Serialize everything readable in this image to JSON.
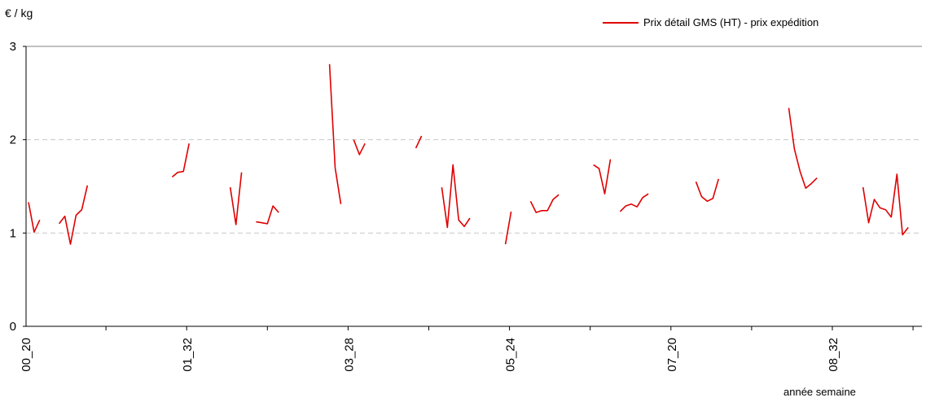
{
  "colors": {
    "series": "#e00000",
    "grid": "#c8c8c8",
    "axis": "#000000"
  },
  "chart_data": {
    "type": "line",
    "ylabel": "€ / kg",
    "xlabel": "année  semaine",
    "ylim": [
      0,
      3
    ],
    "yticks": [
      0,
      1,
      2,
      3
    ],
    "grid": "horizontal-dashed",
    "legend_position": "top-right",
    "x_tick_labels": [
      "00_20",
      "01_32",
      "03_28",
      "05_24",
      "07_20",
      "08_32"
    ],
    "series": [
      {
        "name": "Prix détail GMS (HT) - prix expédition",
        "segments": [
          [
            [
              0.3,
              1.33
            ],
            [
              1.0,
              1.01
            ],
            [
              1.7,
              1.14
            ]
          ],
          [
            [
              4.1,
              1.1
            ],
            [
              4.8,
              1.18
            ],
            [
              5.5,
              0.88
            ],
            [
              6.2,
              1.19
            ],
            [
              6.9,
              1.25
            ],
            [
              7.6,
              1.51
            ]
          ],
          [
            [
              18.1,
              1.6
            ],
            [
              18.8,
              1.65
            ],
            [
              19.5,
              1.66
            ],
            [
              20.2,
              1.96
            ]
          ],
          [
            [
              25.3,
              1.49
            ],
            [
              26.0,
              1.09
            ],
            [
              26.7,
              1.65
            ]
          ],
          [
            [
              28.5,
              1.12
            ],
            [
              29.2,
              1.11
            ],
            [
              29.9,
              1.1
            ],
            [
              30.6,
              1.29
            ],
            [
              31.3,
              1.22
            ]
          ],
          [
            [
              37.6,
              2.81
            ],
            [
              38.3,
              1.7
            ],
            [
              39.0,
              1.31
            ]
          ],
          [
            [
              40.6,
              2.0
            ],
            [
              41.3,
              1.84
            ],
            [
              42.0,
              1.96
            ]
          ],
          [
            [
              48.3,
              1.91
            ],
            [
              49.0,
              2.04
            ]
          ],
          [
            [
              51.5,
              1.49
            ],
            [
              52.2,
              1.06
            ],
            [
              52.9,
              1.73
            ],
            [
              53.6,
              1.14
            ],
            [
              54.3,
              1.07
            ],
            [
              55.0,
              1.16
            ]
          ],
          [
            [
              59.4,
              0.88
            ],
            [
              60.1,
              1.23
            ]
          ],
          [
            [
              62.5,
              1.34
            ],
            [
              63.2,
              1.22
            ],
            [
              63.9,
              1.24
            ],
            [
              64.6,
              1.24
            ],
            [
              65.3,
              1.36
            ],
            [
              66.0,
              1.41
            ]
          ],
          [
            [
              70.3,
              1.73
            ],
            [
              71.0,
              1.69
            ],
            [
              71.7,
              1.42
            ],
            [
              72.4,
              1.79
            ]
          ],
          [
            [
              73.6,
              1.23
            ],
            [
              74.3,
              1.29
            ],
            [
              75.0,
              1.31
            ],
            [
              75.7,
              1.28
            ],
            [
              76.4,
              1.38
            ],
            [
              77.1,
              1.42
            ]
          ],
          [
            [
              83.0,
              1.55
            ],
            [
              83.7,
              1.39
            ],
            [
              84.4,
              1.34
            ],
            [
              85.1,
              1.37
            ],
            [
              85.8,
              1.58
            ]
          ],
          [
            [
              94.5,
              2.34
            ],
            [
              95.2,
              1.9
            ],
            [
              95.9,
              1.66
            ],
            [
              96.6,
              1.48
            ],
            [
              97.3,
              1.53
            ],
            [
              98.0,
              1.59
            ]
          ],
          [
            [
              103.7,
              1.49
            ],
            [
              104.4,
              1.11
            ],
            [
              105.1,
              1.36
            ],
            [
              105.8,
              1.27
            ],
            [
              106.5,
              1.25
            ],
            [
              107.2,
              1.17
            ],
            [
              107.9,
              1.63
            ],
            [
              108.6,
              0.98
            ],
            [
              109.3,
              1.06
            ]
          ]
        ]
      }
    ]
  }
}
